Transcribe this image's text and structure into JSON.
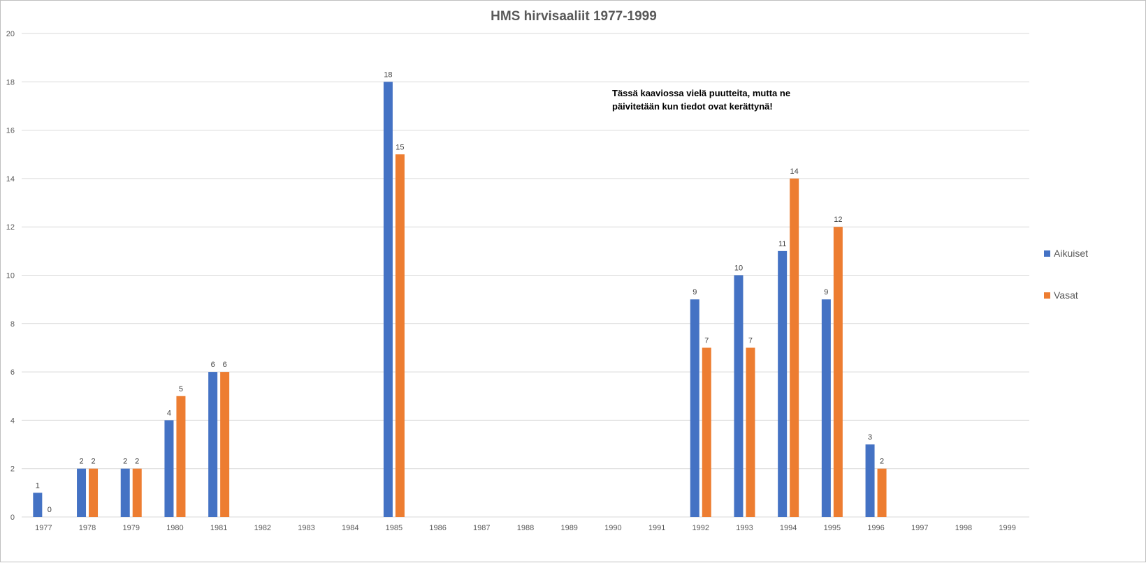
{
  "chart_data": {
    "type": "bar",
    "title": "HMS hirvisaaliit 1977-1999",
    "categories": [
      "1977",
      "1978",
      "1979",
      "1980",
      "1981",
      "1982",
      "1983",
      "1984",
      "1985",
      "1986",
      "1987",
      "1988",
      "1989",
      "1990",
      "1991",
      "1992",
      "1993",
      "1994",
      "1995",
      "1996",
      "1997",
      "1998",
      "1999"
    ],
    "series": [
      {
        "name": "Aikuiset",
        "color": "#4472c4",
        "values": [
          1,
          2,
          2,
          4,
          6,
          null,
          null,
          null,
          18,
          null,
          null,
          null,
          null,
          null,
          null,
          9,
          10,
          11,
          9,
          3,
          null,
          null,
          null
        ]
      },
      {
        "name": "Vasat",
        "color": "#ed7d31",
        "values": [
          0,
          2,
          2,
          5,
          6,
          null,
          null,
          null,
          15,
          null,
          null,
          null,
          null,
          null,
          null,
          7,
          7,
          14,
          12,
          2,
          null,
          null,
          null
        ]
      }
    ],
    "ylim": [
      0,
      20
    ],
    "yticks": [
      0,
      2,
      4,
      6,
      8,
      10,
      12,
      14,
      16,
      18,
      20
    ],
    "xlabel": "",
    "ylabel": "",
    "grid": true,
    "legend": "right",
    "data_labels": true,
    "annotation": [
      "Tässä kaaviossa vielä puutteita, mutta ne",
      "päivitetään kun tiedot ovat kerättynä!"
    ]
  }
}
